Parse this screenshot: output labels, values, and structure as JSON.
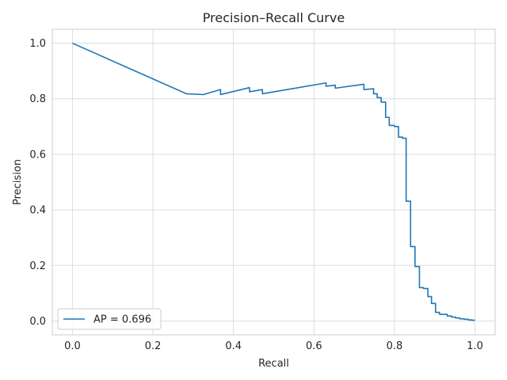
{
  "chart_data": {
    "type": "line",
    "title": "Precision–Recall Curve",
    "xlabel": "Recall",
    "ylabel": "Precision",
    "xlim": [
      -0.05,
      1.05
    ],
    "ylim": [
      -0.05,
      1.05
    ],
    "xticks": [
      0.0,
      0.2,
      0.4,
      0.6,
      0.8,
      1.0
    ],
    "xtick_labels": [
      "0.0",
      "0.2",
      "0.4",
      "0.6",
      "0.8",
      "1.0"
    ],
    "yticks": [
      0.0,
      0.2,
      0.4,
      0.6,
      0.8,
      1.0
    ],
    "ytick_labels": [
      "0.0",
      "0.2",
      "0.4",
      "0.6",
      "0.8",
      "1.0"
    ],
    "grid": true,
    "legend_position": "lower-left",
    "series": [
      {
        "name": "AP = 0.696",
        "color": "#1f77b4",
        "x": [
          0.0,
          0.283,
          0.325,
          0.368,
          0.368,
          0.44,
          0.44,
          0.472,
          0.472,
          0.63,
          0.63,
          0.653,
          0.653,
          0.724,
          0.724,
          0.748,
          0.748,
          0.757,
          0.757,
          0.767,
          0.767,
          0.778,
          0.778,
          0.787,
          0.787,
          0.8,
          0.8,
          0.81,
          0.81,
          0.82,
          0.82,
          0.829,
          0.829,
          0.84,
          0.84,
          0.851,
          0.851,
          0.862,
          0.862,
          0.872,
          0.872,
          0.883,
          0.883,
          0.892,
          0.892,
          0.902,
          0.902,
          0.912,
          0.912,
          0.931,
          0.931,
          0.942,
          0.942,
          0.952,
          0.952,
          0.962,
          0.962,
          0.973,
          0.973,
          0.983,
          0.983,
          0.992,
          0.992,
          1.0
        ],
        "y": [
          1.0,
          0.818,
          0.815,
          0.833,
          0.815,
          0.84,
          0.825,
          0.833,
          0.818,
          0.857,
          0.845,
          0.849,
          0.838,
          0.852,
          0.833,
          0.836,
          0.818,
          0.818,
          0.804,
          0.804,
          0.788,
          0.788,
          0.733,
          0.733,
          0.704,
          0.704,
          0.7,
          0.7,
          0.662,
          0.662,
          0.658,
          0.658,
          0.431,
          0.431,
          0.268,
          0.268,
          0.196,
          0.196,
          0.12,
          0.12,
          0.117,
          0.117,
          0.088,
          0.088,
          0.063,
          0.063,
          0.031,
          0.031,
          0.024,
          0.024,
          0.018,
          0.018,
          0.014,
          0.014,
          0.011,
          0.011,
          0.008,
          0.008,
          0.006,
          0.006,
          0.004,
          0.004,
          0.003,
          0.003
        ]
      }
    ]
  }
}
